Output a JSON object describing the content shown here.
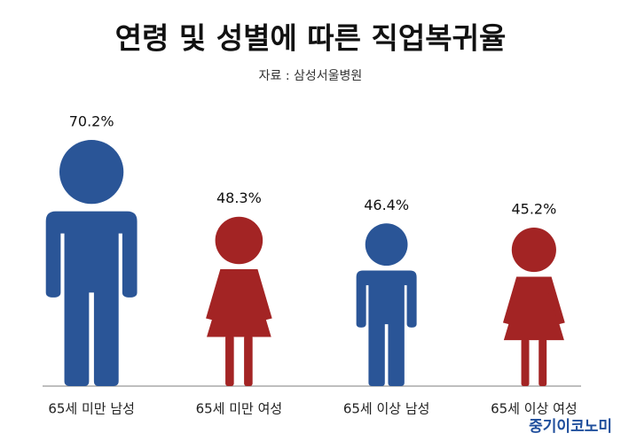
{
  "chart_data": {
    "type": "pictogram",
    "title": "연령 및 성별에 따른 직업복귀율",
    "subtitle": "자료 : 삼성서울병원",
    "annotation": "중기이코노미",
    "categories": [
      "65세 미만 남성",
      "65세 미만 여성",
      "65세 이상 남성",
      "65세 이상 여성"
    ],
    "values": [
      70.2,
      48.3,
      46.4,
      45.2
    ],
    "value_labels": [
      "70.2%",
      "48.3%",
      "46.4%",
      "45.2%"
    ],
    "markers": [
      "male",
      "female",
      "male",
      "female"
    ],
    "colors": [
      "#2a5597",
      "#a32424",
      "#2a5597",
      "#a32424"
    ]
  }
}
